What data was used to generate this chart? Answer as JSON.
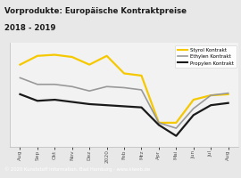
{
  "title_line1": "Vorprodukte: Europäische Kontraktpreise",
  "title_line2": "2018 - 2019",
  "title_color": "#1a1a1a",
  "title_bg": "#f5c800",
  "footer": "© 2020 Kunststoff Information, Bad Homburg - www.kiweb.de",
  "footer_bg": "#8c8c8c",
  "footer_color": "#ffffff",
  "x_labels": [
    "Aug",
    "Sep",
    "Okt",
    "Nov",
    "Dez",
    "2020",
    "Feb",
    "Mrz",
    "Apr",
    "Mai",
    "Jun",
    "Jul",
    "Aug"
  ],
  "styrol": [
    1.0,
    1.08,
    1.09,
    1.07,
    1.0,
    1.08,
    0.92,
    0.9,
    0.47,
    0.47,
    0.68,
    0.72,
    0.73
  ],
  "ethylen": [
    0.88,
    0.82,
    0.82,
    0.8,
    0.76,
    0.8,
    0.79,
    0.77,
    0.47,
    0.42,
    0.6,
    0.72,
    0.74
  ],
  "propylen": [
    0.73,
    0.67,
    0.68,
    0.66,
    0.64,
    0.63,
    0.62,
    0.61,
    0.45,
    0.35,
    0.54,
    0.63,
    0.65
  ],
  "styrol_color": "#f5c800",
  "ethylen_color": "#999999",
  "propylen_color": "#1a1a1a",
  "legend_labels": [
    "Styrol Kontrakt",
    "Ethylen Kontrakt",
    "Propylen Kontrakt"
  ],
  "bg_color": "#e8e8e8",
  "plot_bg": "#f2f2f2",
  "ylim": [
    0.25,
    1.2
  ],
  "grid_color": "#d0d0d0"
}
